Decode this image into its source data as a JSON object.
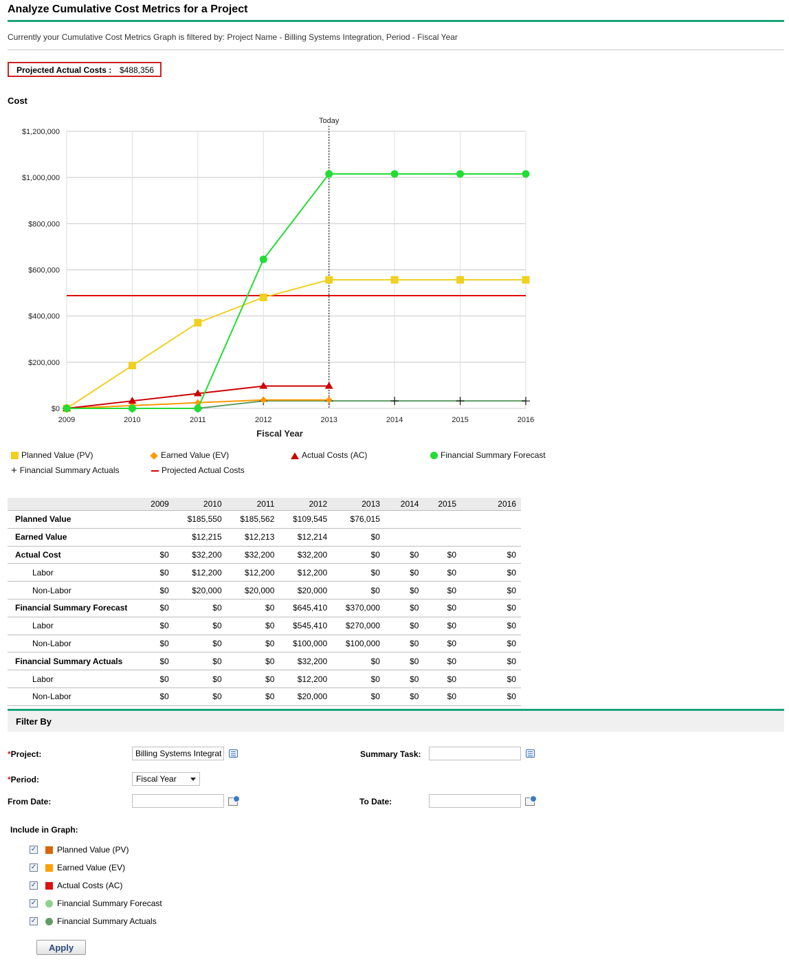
{
  "page": {
    "title": "Analyze Cumulative Cost Metrics for a Project",
    "filter_text": "Currently your Cumulative Cost Metrics Graph is filtered by: Project Name - Billing Systems Integration, Period - Fiscal Year",
    "projected_label": "Projected Actual Costs :",
    "projected_value": "$488,356"
  },
  "chart_data": {
    "type": "line",
    "ylabel": "Cost",
    "xlabel": "Fiscal Year",
    "today_label": "Today",
    "today_x": 2013,
    "x": [
      2009,
      2010,
      2011,
      2012,
      2013,
      2014,
      2015,
      2016
    ],
    "xlim": [
      2009,
      2016
    ],
    "ylim": [
      0,
      1200000
    ],
    "yticks": [
      0,
      200000,
      400000,
      600000,
      800000,
      1000000,
      1200000
    ],
    "ytick_labels": [
      "$0",
      "$200,000",
      "$400,000",
      "$600,000",
      "$800,000",
      "$1,000,000",
      "$1,200,000"
    ],
    "grid": true,
    "legend_position": "bottom",
    "series": [
      {
        "name": "Planned Value (PV)",
        "color": "#f0d020",
        "marker": "square",
        "values": [
          0,
          185550,
          371112,
          480657,
          556672,
          556672,
          556672,
          556672
        ]
      },
      {
        "name": "Earned Value (EV)",
        "color": "#ff9900",
        "marker": "diamond",
        "values": [
          0,
          12215,
          24428,
          36642,
          36642,
          null,
          null,
          null
        ]
      },
      {
        "name": "Actual Costs (AC)",
        "color": "#cc0000",
        "marker": "triangle",
        "values": [
          0,
          32200,
          64400,
          96600,
          96600,
          null,
          null,
          null
        ]
      },
      {
        "name": "Financial Summary Forecast",
        "color": "#22dd33",
        "marker": "circle",
        "values": [
          0,
          0,
          0,
          645410,
          1015410,
          1015410,
          1015410,
          1015410
        ]
      },
      {
        "name": "Financial Summary Actuals",
        "color": "#5f9d64",
        "marker": "plus",
        "values": [
          0,
          0,
          0,
          32200,
          32200,
          32200,
          32200,
          32200
        ]
      },
      {
        "name": "Projected Actual Costs",
        "color": "#dd0000",
        "marker": "none",
        "values": [
          488356,
          488356,
          488356,
          488356,
          488356,
          488356,
          488356,
          488356
        ]
      }
    ]
  },
  "legend": {
    "pv": "Planned Value (PV)",
    "ev": "Earned Value (EV)",
    "ac": "Actual Costs (AC)",
    "fsf": "Financial Summary Forecast",
    "fsa": "Financial Summary Actuals",
    "pac": "Projected Actual Costs"
  },
  "table": {
    "years": [
      "2009",
      "2010",
      "2011",
      "2012",
      "2013",
      "2014",
      "2015",
      "2016"
    ],
    "rows": [
      {
        "label": "Planned Value",
        "main": true,
        "cells": [
          "",
          "$185,550",
          "$185,562",
          "$109,545",
          "$76,015",
          "",
          "",
          ""
        ]
      },
      {
        "label": "Earned Value",
        "main": true,
        "cells": [
          "",
          "$12,215",
          "$12,213",
          "$12,214",
          "$0",
          "",
          "",
          ""
        ]
      },
      {
        "label": "Actual Cost",
        "main": true,
        "cells": [
          "$0",
          "$32,200",
          "$32,200",
          "$32,200",
          "$0",
          "$0",
          "$0",
          "$0"
        ]
      },
      {
        "label": "Labor",
        "main": false,
        "cells": [
          "$0",
          "$12,200",
          "$12,200",
          "$12,200",
          "$0",
          "$0",
          "$0",
          "$0"
        ]
      },
      {
        "label": "Non-Labor",
        "main": false,
        "cells": [
          "$0",
          "$20,000",
          "$20,000",
          "$20,000",
          "$0",
          "$0",
          "$0",
          "$0"
        ]
      },
      {
        "label": "Financial Summary Forecast",
        "main": true,
        "cells": [
          "$0",
          "$0",
          "$0",
          "$645,410",
          "$370,000",
          "$0",
          "$0",
          "$0"
        ]
      },
      {
        "label": "Labor",
        "main": false,
        "cells": [
          "$0",
          "$0",
          "$0",
          "$545,410",
          "$270,000",
          "$0",
          "$0",
          "$0"
        ]
      },
      {
        "label": "Non-Labor",
        "main": false,
        "cells": [
          "$0",
          "$0",
          "$0",
          "$100,000",
          "$100,000",
          "$0",
          "$0",
          "$0"
        ]
      },
      {
        "label": "Financial Summary Actuals",
        "main": true,
        "cells": [
          "$0",
          "$0",
          "$0",
          "$32,200",
          "$0",
          "$0",
          "$0",
          "$0"
        ]
      },
      {
        "label": "Labor",
        "main": false,
        "cells": [
          "$0",
          "$0",
          "$0",
          "$12,200",
          "$0",
          "$0",
          "$0",
          "$0"
        ]
      },
      {
        "label": "Non-Labor",
        "main": false,
        "cells": [
          "$0",
          "$0",
          "$0",
          "$20,000",
          "$0",
          "$0",
          "$0",
          "$0"
        ]
      }
    ]
  },
  "filter": {
    "header": "Filter By",
    "required_mark": "*",
    "project_label": "Project:",
    "project_value": "Billing Systems Integrat",
    "period_label": "Period:",
    "period_value": "Fiscal Year",
    "from_label": "From Date:",
    "to_label": "To Date:",
    "summary_task_label": "Summary Task:",
    "include_label": "Include in Graph:",
    "items": [
      {
        "label": "Planned Value (PV)",
        "color": "#d9660a",
        "shape": "square",
        "checked": true
      },
      {
        "label": "Earned Value (EV)",
        "color": "#ffa000",
        "shape": "square",
        "checked": true
      },
      {
        "label": "Actual Costs (AC)",
        "color": "#dd1111",
        "shape": "square",
        "checked": true
      },
      {
        "label": "Financial Summary Forecast",
        "color": "#90d090",
        "shape": "circle",
        "checked": true
      },
      {
        "label": "Financial Summary Actuals",
        "color": "#5f9d64",
        "shape": "circle",
        "checked": true
      }
    ],
    "apply_label": "Apply"
  }
}
